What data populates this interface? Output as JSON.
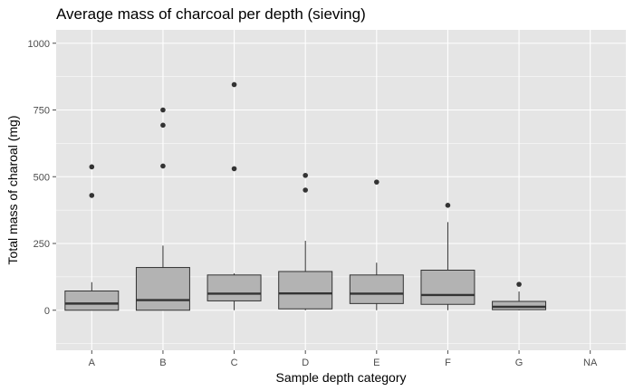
{
  "chart_data": {
    "type": "boxplot",
    "title": "Average mass of charcoal per depth (sieving)",
    "xlabel": "Sample depth category",
    "ylabel": "Total mass of charoal (mg)",
    "categories": [
      "A",
      "B",
      "C",
      "D",
      "E",
      "F",
      "G",
      "NA"
    ],
    "ylim": [
      -150,
      1050
    ],
    "yticks": [
      0,
      250,
      500,
      750,
      1000
    ],
    "grid": true,
    "colors": {
      "panel": "#e5e5e5",
      "grid_major": "#ffffff",
      "box_fill": "#b3b3b3",
      "line": "#333333",
      "tick_text": "#4d4d4d"
    },
    "boxes": [
      {
        "category": "A",
        "lower_whisker": 0,
        "q1": 0,
        "median": 25,
        "q3": 72,
        "upper_whisker": 105,
        "outliers": [
          430,
          537
        ]
      },
      {
        "category": "B",
        "lower_whisker": 0,
        "q1": 0,
        "median": 38,
        "q3": 160,
        "upper_whisker": 242,
        "outliers": [
          540,
          693,
          750
        ]
      },
      {
        "category": "C",
        "lower_whisker": 0,
        "q1": 35,
        "median": 62,
        "q3": 132,
        "upper_whisker": 138,
        "outliers": [
          530,
          845
        ]
      },
      {
        "category": "D",
        "lower_whisker": 0,
        "q1": 5,
        "median": 63,
        "q3": 145,
        "upper_whisker": 260,
        "outliers": [
          450,
          505
        ]
      },
      {
        "category": "E",
        "lower_whisker": 0,
        "q1": 25,
        "median": 62,
        "q3": 132,
        "upper_whisker": 178,
        "outliers": [
          480
        ]
      },
      {
        "category": "F",
        "lower_whisker": 0,
        "q1": 22,
        "median": 57,
        "q3": 150,
        "upper_whisker": 330,
        "outliers": [
          393
        ]
      },
      {
        "category": "G",
        "lower_whisker": 0,
        "q1": 2,
        "median": 13,
        "q3": 33,
        "upper_whisker": 70,
        "outliers": [
          97
        ]
      }
    ]
  }
}
